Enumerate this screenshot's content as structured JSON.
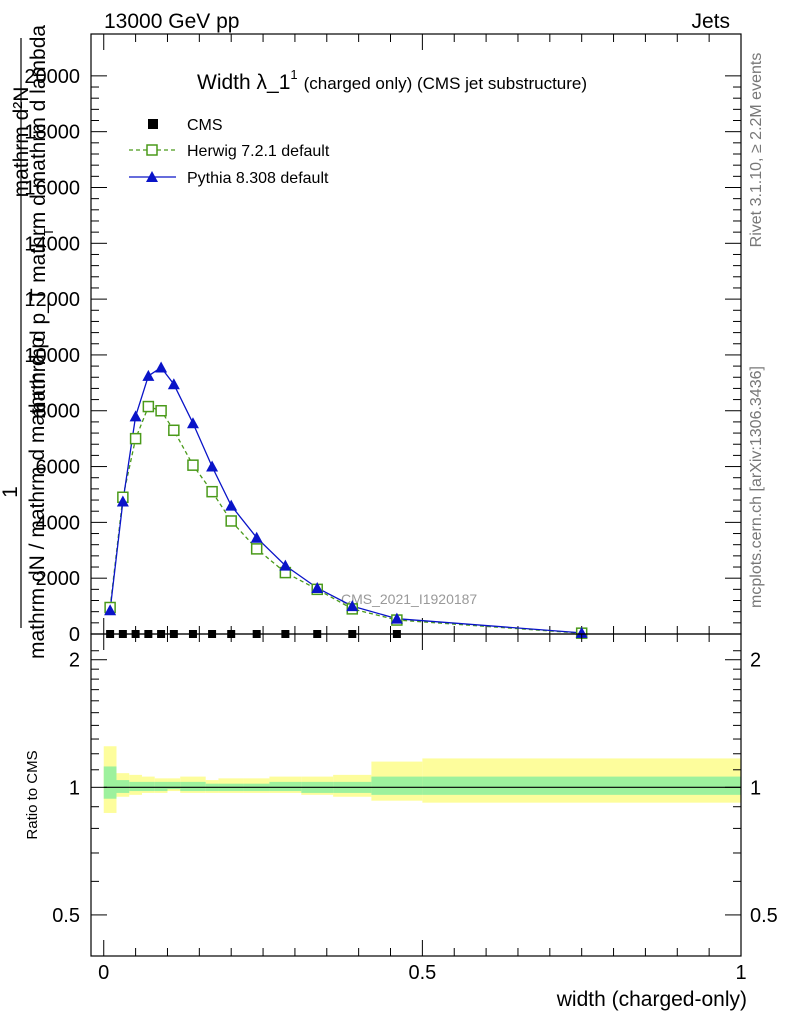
{
  "header": {
    "energy_label": "13000 GeV pp",
    "category_label": "Jets"
  },
  "side_labels": {
    "rivet": "Rivet 3.1.10, ≥ 2.2M events",
    "mcplots": "mcplots.cern.ch [arXiv:1306.3436]"
  },
  "chart_data": [
    {
      "type": "line",
      "title_main": "Width λ_1",
      "title_sup": "1",
      "title_rest": "(charged only) (CMS jet substructure)",
      "watermark": "CMS_2021_I1920187",
      "ylabel_top": "mathrm d²N",
      "ylabel_mid": "mathrm d p_T mathrm d mathrm d lambda",
      "ylabel_one": "1",
      "ylabel_bottom": "mathrm dN / mathrm d mathrm d p",
      "ylabel_sub": "T",
      "ylim": [
        0,
        21500
      ],
      "xlim": [
        -0.02,
        1.0
      ],
      "y_ticks": [
        0,
        2000,
        4000,
        6000,
        8000,
        10000,
        12000,
        14000,
        16000,
        18000,
        20000
      ],
      "y_tick_labels": [
        "0",
        "2000",
        "4000",
        "6000",
        "8000",
        "10000",
        "12000",
        "14000",
        "16000",
        "18000",
        "20000"
      ],
      "legend": [
        {
          "label": "CMS",
          "color": "#000000",
          "marker": "square-filled"
        },
        {
          "label": "Herwig 7.2.1 default",
          "color": "#4a9a1a",
          "marker": "square-open",
          "dash": true
        },
        {
          "label": "Pythia 8.308 default",
          "color": "#0a14c8",
          "marker": "triangle-filled",
          "dash": false
        }
      ],
      "series": [
        {
          "name": "Herwig 7.2.1 default",
          "color": "#4a9a1a",
          "x": [
            0.01,
            0.03,
            0.05,
            0.07,
            0.09,
            0.11,
            0.14,
            0.17,
            0.2,
            0.24,
            0.285,
            0.335,
            0.39,
            0.46,
            0.75
          ],
          "y": [
            950,
            4900,
            7000,
            8150,
            8000,
            7300,
            6050,
            5100,
            4050,
            3050,
            2200,
            1600,
            900,
            500,
            30
          ]
        },
        {
          "name": "Pythia 8.308 default",
          "color": "#0a14c8",
          "x": [
            0.01,
            0.03,
            0.05,
            0.07,
            0.09,
            0.11,
            0.14,
            0.17,
            0.2,
            0.24,
            0.285,
            0.335,
            0.39,
            0.46,
            0.75
          ],
          "y": [
            850,
            4750,
            7800,
            9250,
            9550,
            8950,
            7550,
            6000,
            4600,
            3450,
            2450,
            1650,
            1000,
            550,
            40
          ]
        },
        {
          "name": "CMS",
          "color": "#000000",
          "x": [
            0.01,
            0.03,
            0.05,
            0.07,
            0.09,
            0.11,
            0.14,
            0.17,
            0.2,
            0.24,
            0.285,
            0.335,
            0.39,
            0.46,
            0.75
          ],
          "y": [
            0,
            0,
            0,
            0,
            0,
            0,
            0,
            0,
            0,
            0,
            0,
            0,
            0,
            0,
            0
          ]
        }
      ]
    },
    {
      "type": "area",
      "ylabel": "Ratio to CMS",
      "xlabel": "width (charged-only)",
      "ylim": [
        0.4,
        2.3
      ],
      "log_y": true,
      "xlim": [
        -0.02,
        1.0
      ],
      "y_ticks": [
        0.5,
        1,
        2
      ],
      "y_tick_labels": [
        "0.5",
        "1",
        "2"
      ],
      "x_ticks": [
        0,
        0.5,
        1
      ],
      "x_tick_labels": [
        "0",
        "0.5",
        "1"
      ],
      "bands": {
        "edges": [
          0.0,
          0.02,
          0.04,
          0.06,
          0.08,
          0.1,
          0.12,
          0.16,
          0.18,
          0.22,
          0.26,
          0.31,
          0.36,
          0.42,
          0.5,
          1.0
        ],
        "outer_lo": [
          0.87,
          0.95,
          0.96,
          0.97,
          0.97,
          0.98,
          0.97,
          0.97,
          0.97,
          0.97,
          0.97,
          0.96,
          0.95,
          0.93,
          0.92
        ],
        "outer_hi": [
          1.25,
          1.08,
          1.07,
          1.06,
          1.05,
          1.05,
          1.06,
          1.04,
          1.05,
          1.05,
          1.06,
          1.06,
          1.07,
          1.15,
          1.17
        ],
        "inner_lo": [
          0.94,
          0.97,
          0.98,
          0.98,
          0.98,
          0.99,
          0.98,
          0.98,
          0.98,
          0.98,
          0.98,
          0.97,
          0.97,
          0.96,
          0.96
        ],
        "inner_hi": [
          1.12,
          1.04,
          1.03,
          1.03,
          1.03,
          1.03,
          1.03,
          1.02,
          1.02,
          1.02,
          1.03,
          1.03,
          1.03,
          1.06,
          1.06
        ],
        "outer_color": "#fdfd9c",
        "inner_color": "#9df19d"
      },
      "reference_line": 1
    }
  ]
}
